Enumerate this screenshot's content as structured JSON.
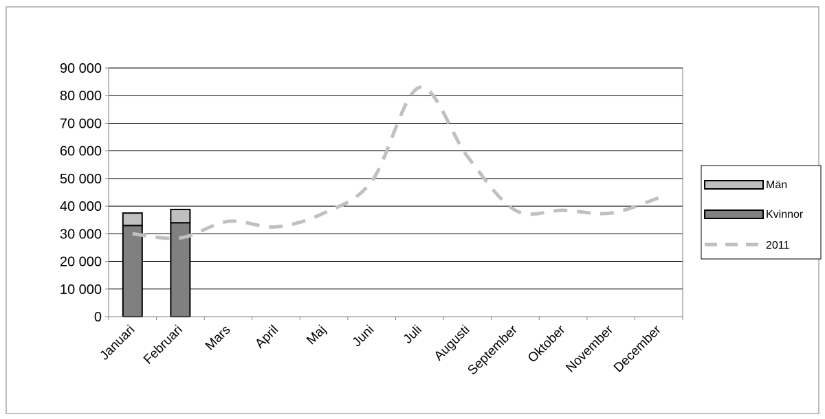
{
  "chart_data": {
    "type": "bar",
    "categories": [
      "Januari",
      "Februari",
      "Mars",
      "April",
      "Maj",
      "Juni",
      "Juli",
      "Augusti",
      "September",
      "Oktober",
      "November",
      "December"
    ],
    "series": [
      {
        "name": "Kvinnor",
        "type": "bar",
        "stack": "a",
        "color": "#808080",
        "values": [
          33000,
          34000,
          null,
          null,
          null,
          null,
          null,
          null,
          null,
          null,
          null,
          null
        ]
      },
      {
        "name": "Män",
        "type": "bar",
        "stack": "a",
        "color": "#c0c0c0",
        "values": [
          4500,
          4800,
          null,
          null,
          null,
          null,
          null,
          null,
          null,
          null,
          null,
          null
        ]
      },
      {
        "name": "2011",
        "type": "line",
        "style": "dashed",
        "color": "#c0c0c0",
        "values": [
          30000,
          28500,
          34500,
          32500,
          37500,
          49000,
          83000,
          58000,
          38500,
          38500,
          37500,
          43000
        ]
      }
    ],
    "yticks": [
      0,
      10000,
      20000,
      30000,
      40000,
      50000,
      60000,
      70000,
      80000,
      90000
    ],
    "ytick_labels": [
      "0",
      "10 000",
      "20 000",
      "30 000",
      "40 000",
      "50 000",
      "60 000",
      "70 000",
      "80 000",
      "90 000"
    ],
    "ylim": [
      0,
      90000
    ],
    "grid": "horizontal",
    "legend_position": "right",
    "legend": [
      {
        "label": "Män",
        "kind": "bar",
        "color": "#c0c0c0"
      },
      {
        "label": "Kvinnor",
        "kind": "bar",
        "color": "#808080"
      },
      {
        "label": "2011",
        "kind": "dashed-line",
        "color": "#c0c0c0"
      }
    ]
  }
}
